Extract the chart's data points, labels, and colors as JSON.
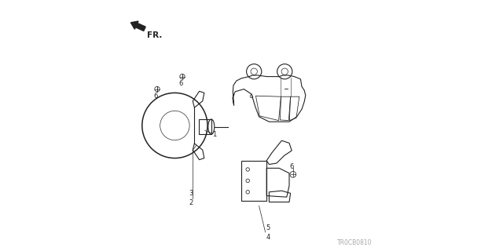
{
  "background_color": "#ffffff",
  "diagram_code": "TR0CB0810",
  "fig_width": 6.4,
  "fig_height": 3.2,
  "dpi": 100
}
